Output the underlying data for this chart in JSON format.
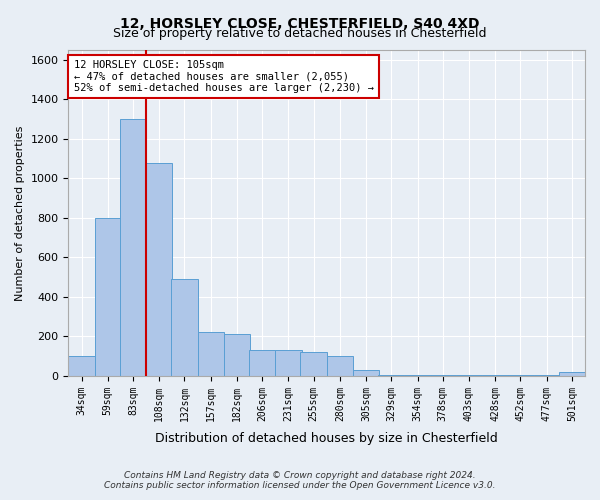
{
  "title1": "12, HORSLEY CLOSE, CHESTERFIELD, S40 4XD",
  "title2": "Size of property relative to detached houses in Chesterfield",
  "xlabel": "Distribution of detached houses by size in Chesterfield",
  "ylabel": "Number of detached properties",
  "annotation_title": "12 HORSLEY CLOSE: 105sqm",
  "annotation_line1": "← 47% of detached houses are smaller (2,055)",
  "annotation_line2": "52% of semi-detached houses are larger (2,230) →",
  "footer1": "Contains HM Land Registry data © Crown copyright and database right 2024.",
  "footer2": "Contains public sector information licensed under the Open Government Licence v3.0.",
  "bar_edges": [
    34,
    59,
    83,
    108,
    132,
    157,
    182,
    206,
    231,
    255,
    280,
    305,
    329,
    354,
    378,
    403,
    428,
    452,
    477,
    501,
    526
  ],
  "bar_heights": [
    100,
    800,
    1300,
    1080,
    490,
    220,
    210,
    130,
    130,
    120,
    100,
    30,
    5,
    5,
    5,
    5,
    5,
    5,
    5,
    20,
    0
  ],
  "bar_color": "#aec6e8",
  "bar_edge_color": "#5a9fd4",
  "red_line_x": 108,
  "ylim": [
    0,
    1650
  ],
  "xlim": [
    34,
    526
  ],
  "bg_color": "#e8eef5",
  "grid_color": "#ffffff",
  "annotation_box_color": "#ffffff",
  "annotation_box_edge": "#cc0000",
  "red_line_color": "#cc0000"
}
